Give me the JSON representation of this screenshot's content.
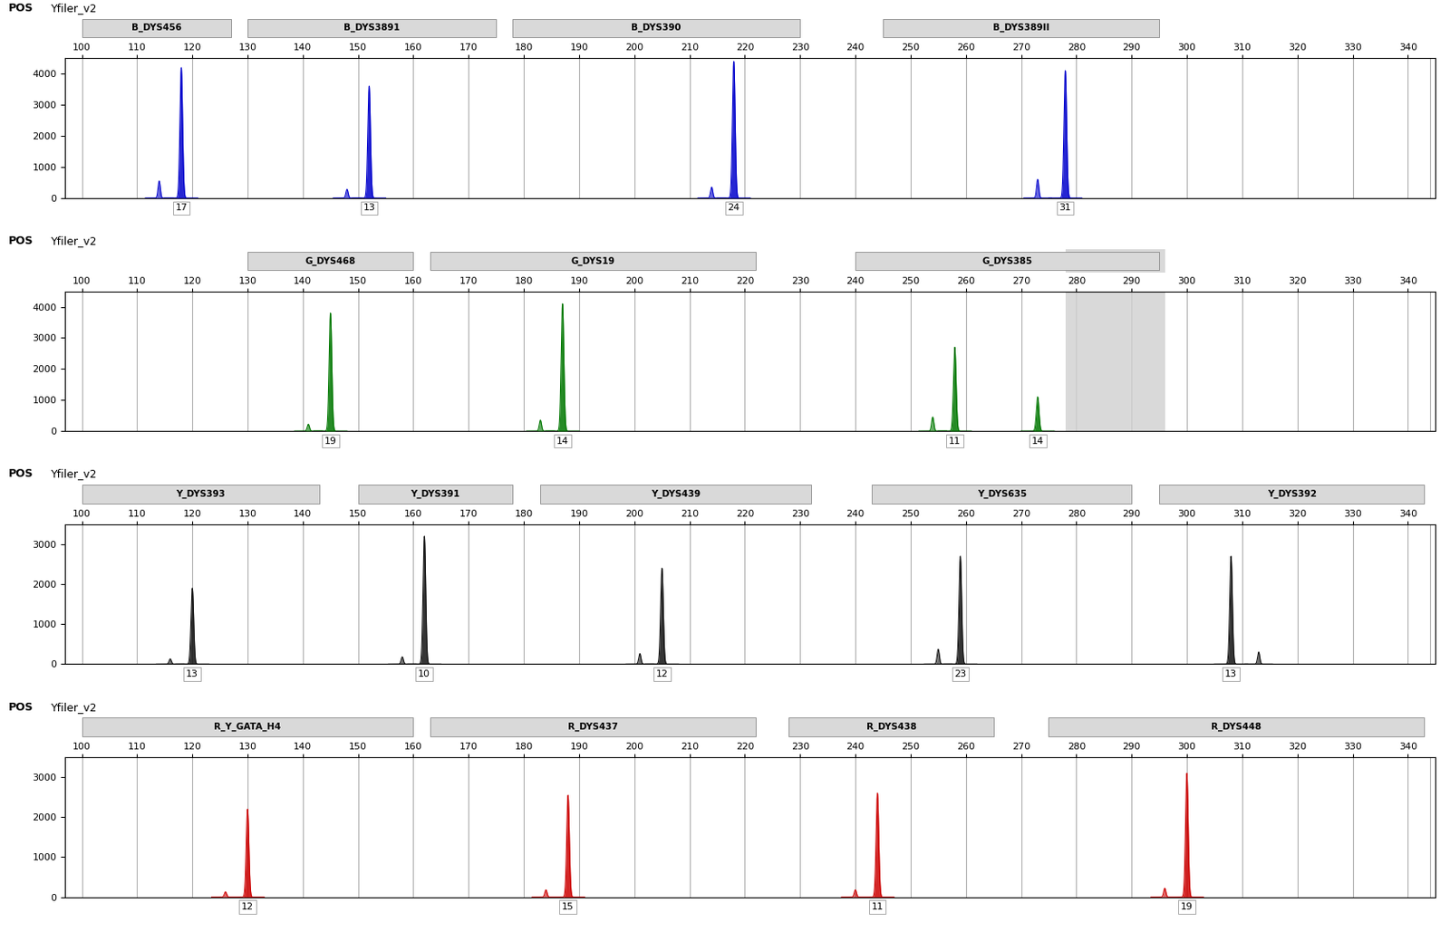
{
  "chart_data": [
    {
      "type": "peaks",
      "title": "POS",
      "subtitle": "Yfiler_v2",
      "color": "#0000cc",
      "xlim": [
        97,
        345
      ],
      "xticks": [
        100,
        110,
        120,
        130,
        140,
        150,
        160,
        170,
        180,
        190,
        200,
        210,
        220,
        230,
        240,
        250,
        260,
        270,
        280,
        290,
        300,
        310,
        320,
        330,
        340
      ],
      "ylim": [
        0,
        4500
      ],
      "yticks": [
        0,
        1000,
        2000,
        3000,
        4000
      ],
      "grid": "x",
      "reference_lines": [
        344
      ],
      "x": [
        118,
        152,
        218,
        278
      ],
      "values": [
        4200,
        3600,
        4400,
        4100
      ],
      "widths": [
        0.6,
        0.6,
        0.6,
        0.6
      ],
      "stutter": {
        "x": [
          114,
          148,
          214,
          273
        ],
        "values": [
          550,
          280,
          350,
          600
        ],
        "widths": [
          0.5,
          0.5,
          0.5,
          0.5
        ]
      },
      "annotations": [
        {
          "x": 118,
          "text": "17"
        },
        {
          "x": 152,
          "text": "13"
        },
        {
          "x": 218,
          "text": "24"
        },
        {
          "x": 278,
          "text": "31"
        }
      ],
      "regions": [
        {
          "text": "B_DYS456",
          "start": 100,
          "end": 127
        },
        {
          "text": "B_DYS3891",
          "start": 130,
          "end": 175
        },
        {
          "text": "B_DYS390",
          "start": 178,
          "end": 230
        },
        {
          "text": "B_DYS389II",
          "start": 245,
          "end": 295
        }
      ]
    },
    {
      "type": "peaks",
      "title": "POS",
      "subtitle": "Yfiler_v2",
      "color": "#007700",
      "xlim": [
        97,
        345
      ],
      "xticks": [
        100,
        110,
        120,
        130,
        140,
        150,
        160,
        170,
        180,
        190,
        200,
        210,
        220,
        230,
        240,
        250,
        260,
        270,
        280,
        290,
        300,
        310,
        320,
        330,
        340
      ],
      "ylim": [
        0,
        4500
      ],
      "yticks": [
        0,
        1000,
        2000,
        3000,
        4000
      ],
      "grid": "x",
      "reference_lines": [
        344
      ],
      "x": [
        145,
        187,
        258,
        273
      ],
      "values": [
        3800,
        4100,
        2700,
        1100
      ],
      "widths": [
        0.6,
        0.6,
        0.6,
        0.6
      ],
      "stutter": {
        "x": [
          141,
          183,
          254
        ],
        "values": [
          220,
          350,
          450
        ],
        "widths": [
          0.5,
          0.5,
          0.5
        ]
      },
      "annotations": [
        {
          "x": 145,
          "text": "19"
        },
        {
          "x": 187,
          "text": "14"
        },
        {
          "x": 258,
          "text": "11"
        },
        {
          "x": 273,
          "text": "14"
        }
      ],
      "regions": [
        {
          "text": "G_DYS468",
          "start": 130,
          "end": 160
        },
        {
          "text": "G_DYS19",
          "start": 163,
          "end": 222
        },
        {
          "text": "G_DYS385",
          "start": 240,
          "end": 295
        }
      ],
      "shaded": {
        "start": 278,
        "end": 296
      }
    },
    {
      "type": "peaks",
      "title": "POS",
      "subtitle": "Yfiler_v2",
      "color": "#111111",
      "xlim": [
        97,
        345
      ],
      "xticks": [
        100,
        110,
        120,
        130,
        140,
        150,
        160,
        170,
        180,
        190,
        200,
        210,
        220,
        230,
        240,
        250,
        260,
        270,
        280,
        290,
        300,
        310,
        320,
        330,
        340
      ],
      "ylim": [
        0,
        3500
      ],
      "yticks": [
        0,
        1000,
        2000,
        3000
      ],
      "grid": "x",
      "reference_lines": [
        344
      ],
      "x": [
        120,
        162,
        205,
        259,
        308
      ],
      "values": [
        1900,
        3200,
        2400,
        2700,
        2700
      ],
      "widths": [
        0.6,
        0.6,
        0.6,
        0.6,
        0.6
      ],
      "stutter": {
        "x": [
          116,
          158,
          201,
          255,
          313
        ],
        "values": [
          130,
          180,
          260,
          370,
          300
        ],
        "widths": [
          0.5,
          0.5,
          0.5,
          0.5,
          0.5
        ]
      },
      "annotations": [
        {
          "x": 120,
          "text": "13"
        },
        {
          "x": 162,
          "text": "10"
        },
        {
          "x": 205,
          "text": "12"
        },
        {
          "x": 259,
          "text": "23"
        },
        {
          "x": 308,
          "text": "13"
        }
      ],
      "regions": [
        {
          "text": "Y_DYS393",
          "start": 100,
          "end": 143
        },
        {
          "text": "Y_DYS391",
          "start": 150,
          "end": 178
        },
        {
          "text": "Y_DYS439",
          "start": 183,
          "end": 232
        },
        {
          "text": "Y_DYS635",
          "start": 243,
          "end": 290
        },
        {
          "text": "Y_DYS392",
          "start": 295,
          "end": 343
        }
      ]
    },
    {
      "type": "peaks",
      "title": "POS",
      "subtitle": "Yfiler_v2",
      "color": "#cc0000",
      "xlim": [
        97,
        345
      ],
      "xticks": [
        100,
        110,
        120,
        130,
        140,
        150,
        160,
        170,
        180,
        190,
        200,
        210,
        220,
        230,
        240,
        250,
        260,
        270,
        280,
        290,
        300,
        310,
        320,
        330,
        340
      ],
      "ylim": [
        0,
        3500
      ],
      "yticks": [
        0,
        1000,
        2000,
        3000
      ],
      "grid": "x",
      "reference_lines": [
        344
      ],
      "x": [
        130,
        188,
        244,
        300
      ],
      "values": [
        2200,
        2550,
        2600,
        3100
      ],
      "widths": [
        0.6,
        0.6,
        0.6,
        0.6
      ],
      "stutter": {
        "x": [
          126,
          184,
          240,
          296
        ],
        "values": [
          130,
          180,
          180,
          220
        ],
        "widths": [
          0.5,
          0.5,
          0.5,
          0.5
        ]
      },
      "annotations": [
        {
          "x": 130,
          "text": "12"
        },
        {
          "x": 188,
          "text": "15"
        },
        {
          "x": 244,
          "text": "11"
        },
        {
          "x": 300,
          "text": "19"
        }
      ],
      "regions": [
        {
          "text": "R_Y_GATA_H4",
          "start": 100,
          "end": 160
        },
        {
          "text": "R_DYS437",
          "start": 163,
          "end": 222
        },
        {
          "text": "R_DYS438",
          "start": 228,
          "end": 265
        },
        {
          "text": "R_DYS448",
          "start": 275,
          "end": 343
        }
      ]
    }
  ]
}
